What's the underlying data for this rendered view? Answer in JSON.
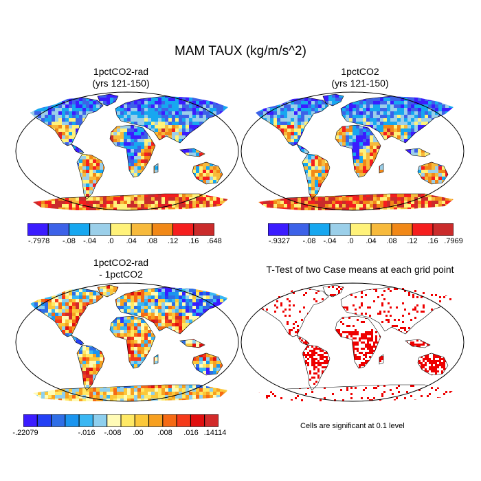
{
  "title": "MAM TAUX (kg/m/s^2)",
  "colors": {
    "ocean": "#ffffff",
    "coast": "#000000",
    "significant": "#ee0000"
  },
  "panels": [
    {
      "id": "rad",
      "title_line1": "1pctCO2-rad",
      "title_line2": "(yrs 121-150)",
      "colorbar": {
        "colors": [
          "#3b1cff",
          "#3d62e8",
          "#17a7f0",
          "#9bcfe9",
          "#fff27a",
          "#f7ba3c",
          "#f18817",
          "#f51e1e",
          "#ca2b2b"
        ],
        "labels": [
          "-.7978",
          "-.08",
          "-.04",
          ".0",
          ".04",
          ".08",
          ".12",
          ".16",
          ".648"
        ]
      }
    },
    {
      "id": "ctl",
      "title_line1": "1pctCO2",
      "title_line2": "(yrs 121-150)",
      "colorbar": {
        "colors": [
          "#3b1cff",
          "#3d62e8",
          "#17a7f0",
          "#9bcfe9",
          "#fff27a",
          "#f7ba3c",
          "#f18817",
          "#f51e1e",
          "#ca2b2b"
        ],
        "labels": [
          "-.9327",
          "-.08",
          "-.04",
          ".0",
          ".04",
          ".08",
          ".12",
          ".16",
          ".7969"
        ]
      }
    },
    {
      "id": "diff",
      "title_line1": "1pctCO2-rad",
      "title_line2": "- 1pctCO2",
      "colorbar": {
        "colors": [
          "#3b1cff",
          "#2340f5",
          "#2f6ee6",
          "#1b95ef",
          "#3ab7f3",
          "#8ecfee",
          "#fffbb6",
          "#ffe965",
          "#fbc83a",
          "#f7a020",
          "#f56a14",
          "#f53a1a",
          "#e00f0f",
          "#d22a2a"
        ],
        "labels": [
          "-.22079",
          "-.016",
          "-.008",
          ".00",
          ".008",
          ".016",
          ".14114"
        ]
      }
    },
    {
      "id": "ttest",
      "title_line1": "T-Test of two Case means at each grid point",
      "note": "Cells are significant at 0.1 level"
    }
  ]
}
